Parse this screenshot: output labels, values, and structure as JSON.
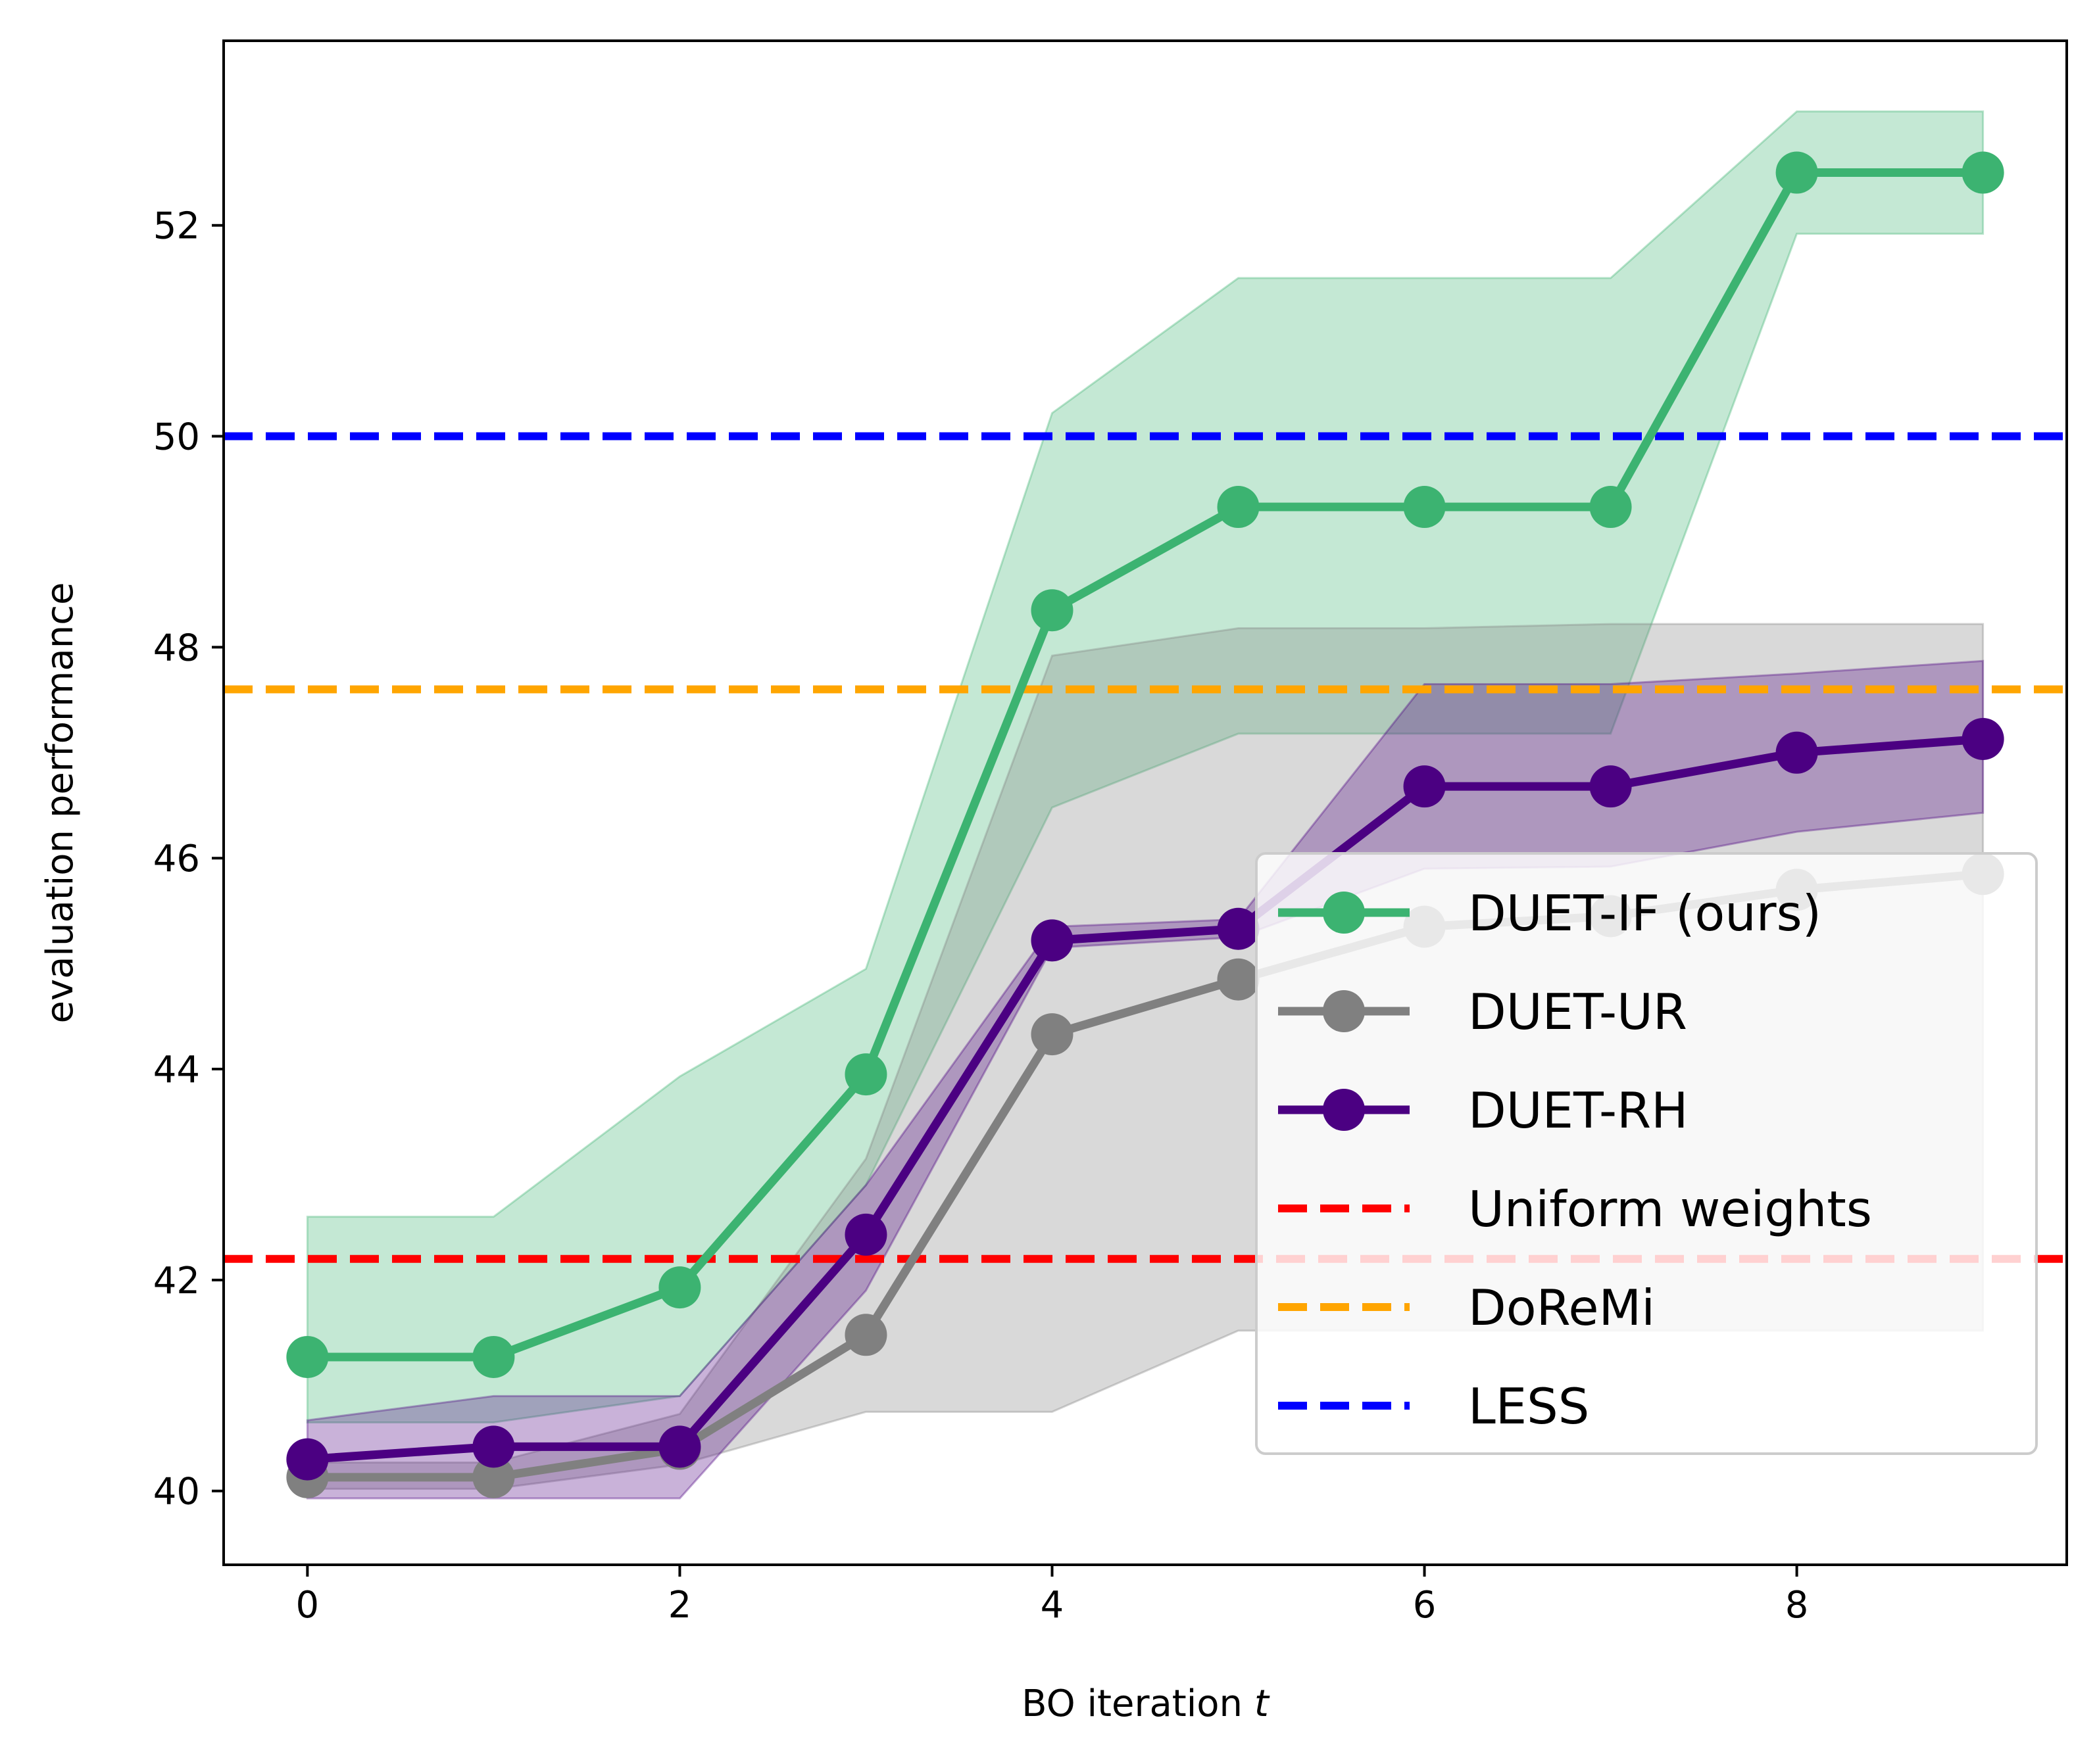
{
  "chart_data": {
    "type": "line",
    "title": "",
    "xlabel": "BO iteration ",
    "xlabel_italic": "t",
    "ylabel": "evaluation performance",
    "xlim": [
      -0.45,
      9.45
    ],
    "ylim": [
      39.3,
      53.75
    ],
    "xticks": [
      0,
      2,
      4,
      6,
      8
    ],
    "yticks": [
      40,
      42,
      44,
      46,
      48,
      50,
      52
    ],
    "x": [
      0,
      1,
      2,
      3,
      4,
      5,
      6,
      7,
      8,
      9
    ],
    "grid": false,
    "legend_position": "lower-right",
    "series": [
      {
        "name": "DUET-IF (ours)",
        "color": "#3cb371",
        "values": [
          41.27,
          41.27,
          41.93,
          43.95,
          48.35,
          49.33,
          49.33,
          49.33,
          52.5,
          52.5
        ],
        "lower": [
          40.65,
          40.65,
          40.9,
          42.9,
          46.48,
          47.18,
          47.18,
          47.18,
          51.92,
          51.92
        ],
        "upper": [
          42.6,
          42.6,
          43.93,
          44.95,
          50.22,
          51.5,
          51.5,
          51.5,
          53.08,
          53.08
        ]
      },
      {
        "name": "DUET-UR",
        "color": "#808080",
        "values": [
          40.13,
          40.13,
          40.4,
          41.48,
          44.33,
          44.85,
          45.35,
          45.45,
          45.7,
          45.85
        ],
        "lower": [
          40.02,
          40.02,
          40.25,
          40.75,
          40.75,
          41.52,
          41.52,
          41.52,
          41.52,
          41.52
        ],
        "upper": [
          40.27,
          40.27,
          40.73,
          43.15,
          47.92,
          48.18,
          48.18,
          48.22,
          48.22,
          48.22
        ]
      },
      {
        "name": "DUET-RH",
        "color": "#4b0082",
        "values": [
          40.3,
          40.42,
          40.42,
          42.43,
          45.22,
          45.33,
          46.68,
          46.68,
          47.0,
          47.13
        ],
        "lower": [
          39.93,
          39.93,
          39.93,
          41.9,
          45.15,
          45.25,
          45.9,
          45.92,
          46.25,
          46.43
        ],
        "upper": [
          40.67,
          40.9,
          40.9,
          42.9,
          45.35,
          45.42,
          47.65,
          47.65,
          47.75,
          47.87
        ]
      }
    ],
    "reference_lines": [
      {
        "name": "Uniform weights",
        "y": 42.2,
        "color": "#ff0000"
      },
      {
        "name": "DoReMi",
        "y": 47.6,
        "color": "#ffa500"
      },
      {
        "name": "LESS",
        "y": 50.0,
        "color": "#0000ff"
      }
    ]
  }
}
